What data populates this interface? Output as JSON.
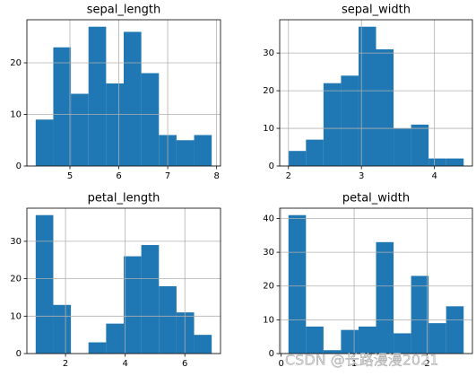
{
  "chart_data": [
    {
      "type": "histogram",
      "title": "sepal_length",
      "bins": [
        4.3,
        4.66,
        5.02,
        5.38,
        5.74,
        6.1,
        6.46,
        6.82,
        7.18,
        7.54,
        7.9
      ],
      "values": [
        9,
        23,
        14,
        27,
        16,
        26,
        18,
        6,
        5,
        6
      ],
      "color": "#1f77b4",
      "xlim": [
        4.12,
        8.08
      ],
      "ylim": [
        0,
        28.35
      ],
      "xticks": [
        5,
        6,
        7,
        8
      ],
      "yticks": [
        0,
        10,
        20
      ],
      "grid": true
    },
    {
      "type": "histogram",
      "title": "sepal_width",
      "bins": [
        2.0,
        2.24,
        2.48,
        2.72,
        2.96,
        3.2,
        3.44,
        3.68,
        3.92,
        4.16,
        4.4
      ],
      "values": [
        4,
        7,
        22,
        24,
        37,
        31,
        10,
        11,
        2,
        2
      ],
      "color": "#1f77b4",
      "xlim": [
        1.88,
        4.52
      ],
      "ylim": [
        0,
        38.85
      ],
      "xticks": [
        2,
        3,
        4
      ],
      "yticks": [
        0,
        10,
        20,
        30
      ],
      "grid": true
    },
    {
      "type": "histogram",
      "title": "petal_length",
      "bins": [
        1.0,
        1.59,
        2.18,
        2.77,
        3.36,
        3.95,
        4.54,
        5.13,
        5.72,
        6.31,
        6.9
      ],
      "values": [
        37,
        13,
        0,
        3,
        8,
        26,
        29,
        18,
        11,
        5
      ],
      "color": "#1f77b4",
      "xlim": [
        0.705,
        7.195
      ],
      "ylim": [
        0,
        38.85
      ],
      "xticks": [
        2,
        4,
        6
      ],
      "yticks": [
        0,
        10,
        20,
        30
      ],
      "grid": true
    },
    {
      "type": "histogram",
      "title": "petal_width",
      "bins": [
        0.1,
        0.34,
        0.58,
        0.82,
        1.06,
        1.3,
        1.54,
        1.78,
        2.02,
        2.26,
        2.5
      ],
      "values": [
        41,
        8,
        1,
        7,
        8,
        33,
        6,
        23,
        9,
        14
      ],
      "color": "#1f77b4",
      "xlim": [
        -0.02,
        2.62
      ],
      "ylim": [
        0,
        43.05
      ],
      "xticks": [
        0,
        1,
        2
      ],
      "yticks": [
        0,
        10,
        20,
        30,
        40
      ],
      "grid": true
    }
  ],
  "watermark": "CSDN @长路漫漫2021"
}
